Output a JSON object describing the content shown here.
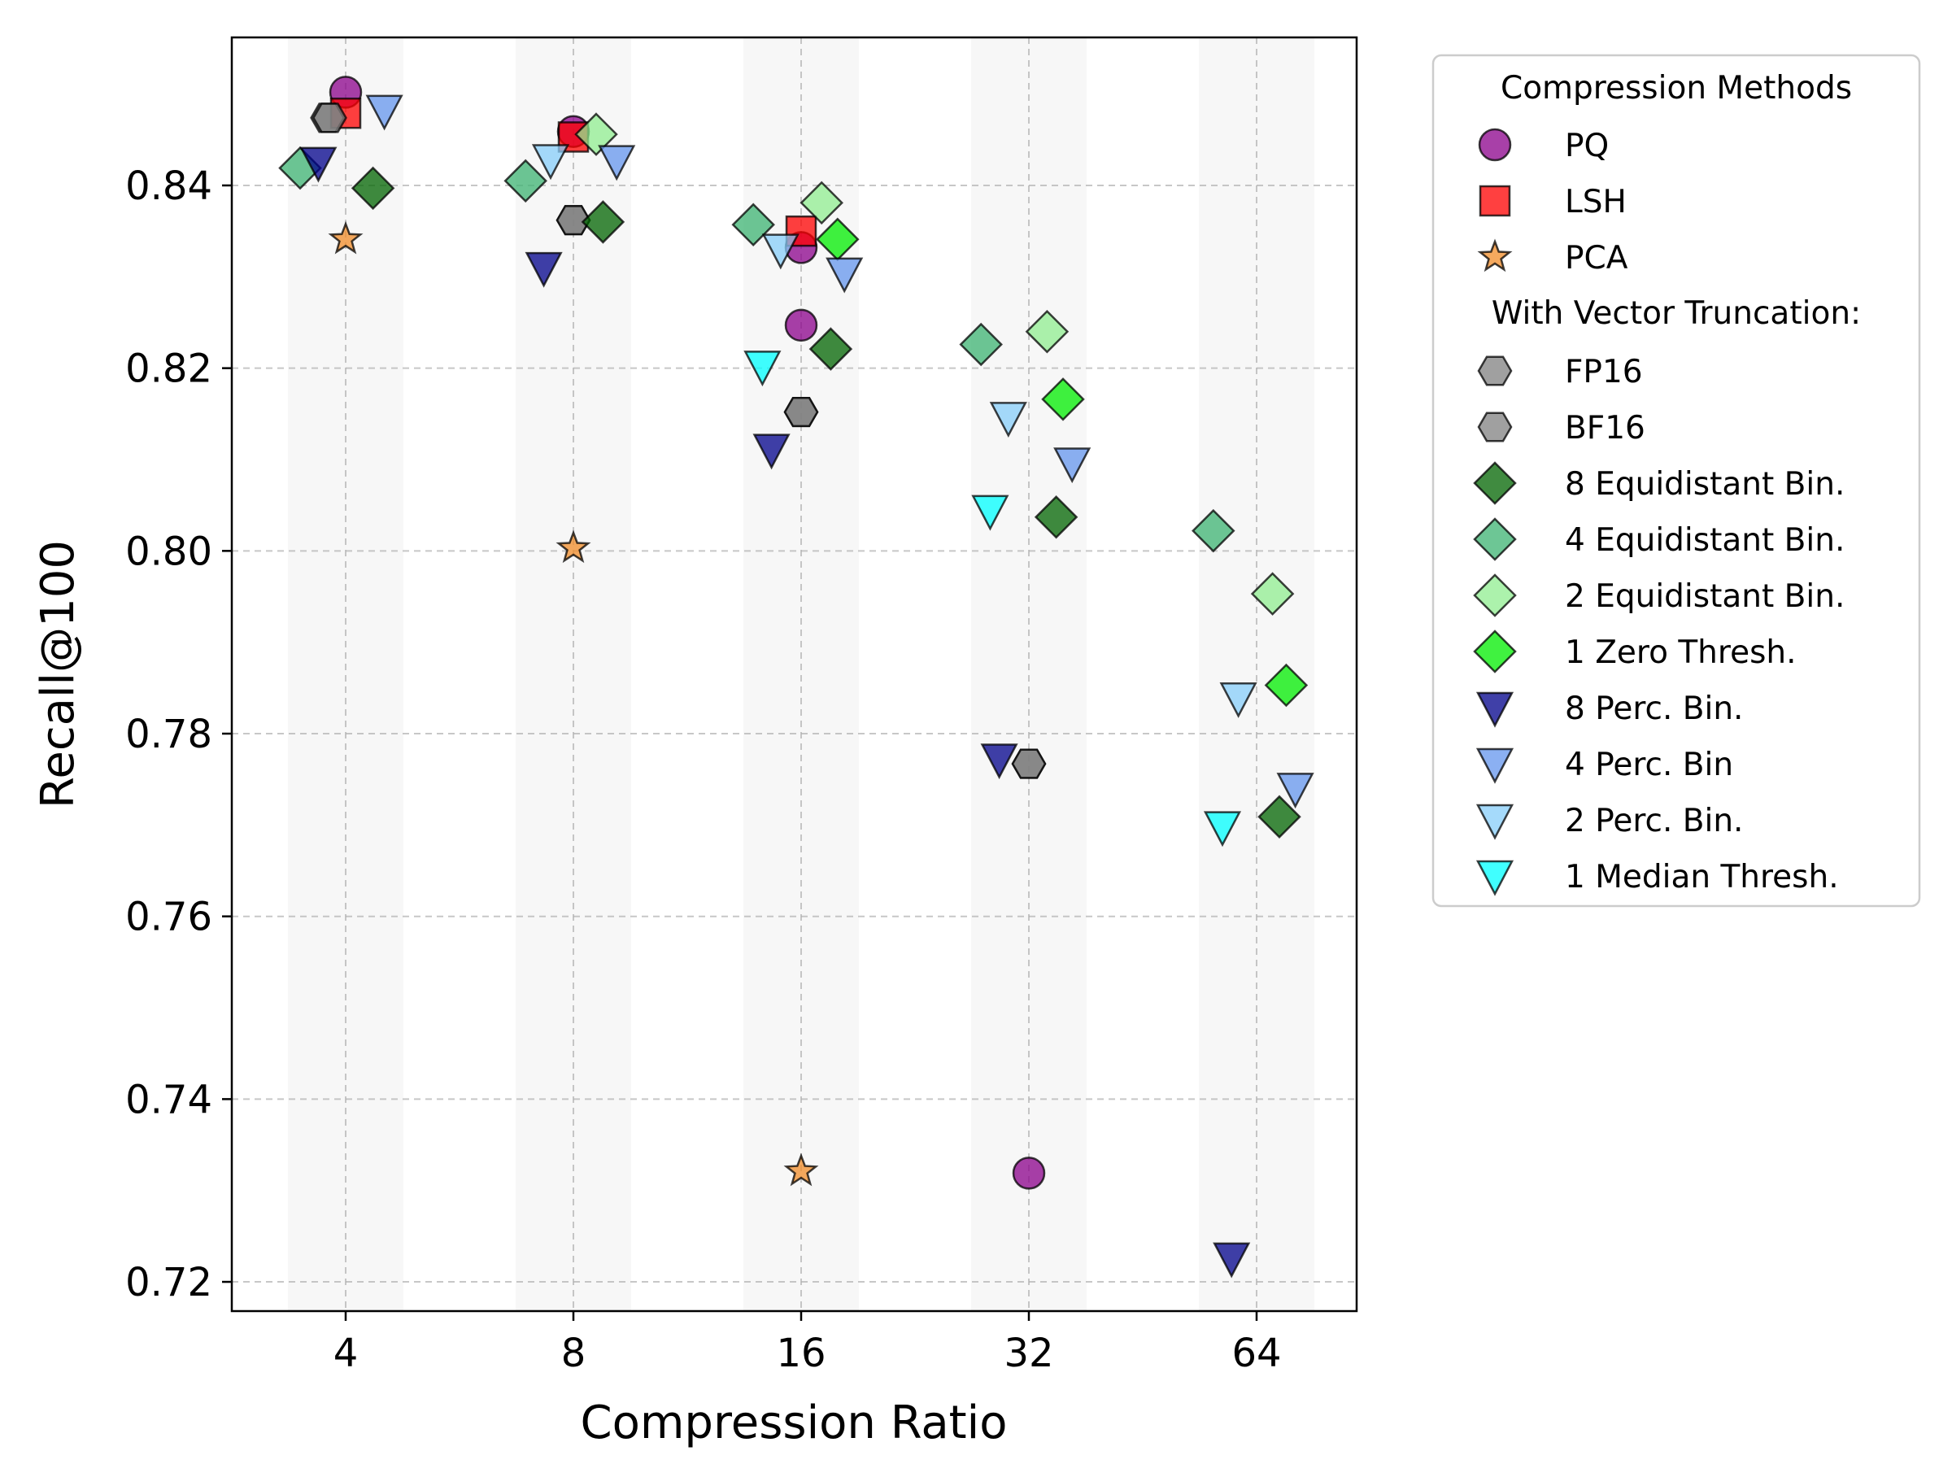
{
  "chart_data": {
    "type": "scatter",
    "xlabel": "Compression Ratio",
    "ylabel": "Recall@100",
    "x_categories": [
      "4",
      "8",
      "16",
      "32",
      "64"
    ],
    "y_ticks": [
      "0.72",
      "0.74",
      "0.76",
      "0.78",
      "0.80",
      "0.82",
      "0.84"
    ],
    "ylim": [
      0.7168,
      0.8562
    ],
    "grid": true,
    "legend_placement": "outside-right",
    "legend": {
      "group1_title": "Compression Methods",
      "group2_title": "With Vector Truncation:"
    },
    "series": [
      {
        "name": "PQ",
        "group": 1,
        "marker": "circle",
        "color": "#8B008B",
        "points": [
          {
            "x": "4",
            "offset": 0.0,
            "y": 0.8502
          },
          {
            "x": "8",
            "offset": 0.0,
            "y": 0.8459
          },
          {
            "x": "16",
            "offset": 0.0,
            "y": 0.8332
          },
          {
            "x": "16",
            "offset": 0.0,
            "y": 0.8247
          },
          {
            "x": "32",
            "offset": 0.0,
            "y": 0.7319
          }
        ]
      },
      {
        "name": "LSH",
        "group": 1,
        "marker": "square",
        "color": "#FF0000",
        "points": [
          {
            "x": "4",
            "offset": 0.0,
            "y": 0.8479
          },
          {
            "x": "8",
            "offset": 0.0,
            "y": 0.8453
          },
          {
            "x": "16",
            "offset": 0.0,
            "y": 0.835
          }
        ]
      },
      {
        "name": "PCA",
        "group": 1,
        "marker": "star",
        "color": "#F28C28",
        "points": [
          {
            "x": "4",
            "offset": 0.0,
            "y": 0.8341
          },
          {
            "x": "8",
            "offset": 0.0,
            "y": 0.8003
          },
          {
            "x": "16",
            "offset": 0.0,
            "y": 0.7321
          }
        ]
      },
      {
        "name": "FP16",
        "group": 2,
        "marker": "hexagon",
        "color": "#808080",
        "points": [
          {
            "x": "4",
            "offset": -0.08,
            "y": 0.8474
          },
          {
            "x": "8",
            "offset": 0.0,
            "y": 0.8362
          },
          {
            "x": "16",
            "offset": 0.0,
            "y": 0.8152
          },
          {
            "x": "32",
            "offset": 0.0,
            "y": 0.7767
          }
        ]
      },
      {
        "name": "BF16",
        "group": 2,
        "marker": "hexagon",
        "color": "#808080",
        "points": [
          {
            "x": "4",
            "offset": -0.07,
            "y": 0.8474
          },
          {
            "x": "8",
            "offset": 0.0,
            "y": 0.8362
          },
          {
            "x": "16",
            "offset": 0.0,
            "y": 0.8152
          },
          {
            "x": "32",
            "offset": 0.0,
            "y": 0.7767
          }
        ]
      },
      {
        "name": "8 Equidistant Bin.",
        "group": 2,
        "marker": "diamond",
        "color": "#006400",
        "points": [
          {
            "x": "4",
            "offset": 0.12,
            "y": 0.8397
          },
          {
            "x": "8",
            "offset": 0.13,
            "y": 0.836
          },
          {
            "x": "16",
            "offset": 0.13,
            "y": 0.8221
          },
          {
            "x": "32",
            "offset": 0.12,
            "y": 0.8037
          },
          {
            "x": "64",
            "offset": 0.1,
            "y": 0.7709
          }
        ]
      },
      {
        "name": "4 Equidistant Bin.",
        "group": 2,
        "marker": "diamond",
        "color": "#3CB371",
        "points": [
          {
            "x": "4",
            "offset": -0.2,
            "y": 0.8419
          },
          {
            "x": "8",
            "offset": -0.21,
            "y": 0.8405
          },
          {
            "x": "16",
            "offset": -0.21,
            "y": 0.8357
          },
          {
            "x": "32",
            "offset": -0.21,
            "y": 0.8226
          },
          {
            "x": "64",
            "offset": -0.19,
            "y": 0.8022
          }
        ]
      },
      {
        "name": "2 Equidistant Bin.",
        "group": 2,
        "marker": "diamond",
        "color": "#90EE90",
        "points": [
          {
            "x": "8",
            "offset": 0.1,
            "y": 0.8456
          },
          {
            "x": "16",
            "offset": 0.09,
            "y": 0.8381
          },
          {
            "x": "32",
            "offset": 0.08,
            "y": 0.824
          },
          {
            "x": "64",
            "offset": 0.07,
            "y": 0.7953
          }
        ]
      },
      {
        "name": "1 Zero Thresh.",
        "group": 2,
        "marker": "diamond",
        "color": "#00EE00",
        "points": [
          {
            "x": "16",
            "offset": 0.16,
            "y": 0.8341
          },
          {
            "x": "32",
            "offset": 0.15,
            "y": 0.8166
          },
          {
            "x": "64",
            "offset": 0.13,
            "y": 0.7853
          }
        ]
      },
      {
        "name": "8 Perc. Bin.",
        "group": 2,
        "marker": "triangle-down",
        "color": "#00008B",
        "points": [
          {
            "x": "4",
            "offset": -0.12,
            "y": 0.8425
          },
          {
            "x": "8",
            "offset": -0.13,
            "y": 0.831
          },
          {
            "x": "16",
            "offset": -0.13,
            "y": 0.8111
          },
          {
            "x": "32",
            "offset": -0.13,
            "y": 0.7772
          },
          {
            "x": "64",
            "offset": -0.11,
            "y": 0.7226
          }
        ]
      },
      {
        "name": "4 Perc. Bin",
        "group": 2,
        "marker": "triangle-down",
        "color": "#6495ED",
        "points": [
          {
            "x": "4",
            "offset": 0.17,
            "y": 0.8482
          },
          {
            "x": "8",
            "offset": 0.19,
            "y": 0.8427
          },
          {
            "x": "16",
            "offset": 0.19,
            "y": 0.8304
          },
          {
            "x": "32",
            "offset": 0.19,
            "y": 0.8096
          },
          {
            "x": "64",
            "offset": 0.17,
            "y": 0.774
          }
        ]
      },
      {
        "name": "2 Perc. Bin.",
        "group": 2,
        "marker": "triangle-down",
        "color": "#87CEFA",
        "points": [
          {
            "x": "8",
            "offset": -0.1,
            "y": 0.8428
          },
          {
            "x": "16",
            "offset": -0.09,
            "y": 0.833
          },
          {
            "x": "32",
            "offset": -0.09,
            "y": 0.8146
          },
          {
            "x": "64",
            "offset": -0.08,
            "y": 0.7839
          }
        ]
      },
      {
        "name": "1 Median Thresh.",
        "group": 2,
        "marker": "triangle-down",
        "color": "#00FFFF",
        "points": [
          {
            "x": "16",
            "offset": -0.17,
            "y": 0.8202
          },
          {
            "x": "32",
            "offset": -0.17,
            "y": 0.8044
          },
          {
            "x": "64",
            "offset": -0.15,
            "y": 0.7698
          }
        ]
      }
    ]
  }
}
